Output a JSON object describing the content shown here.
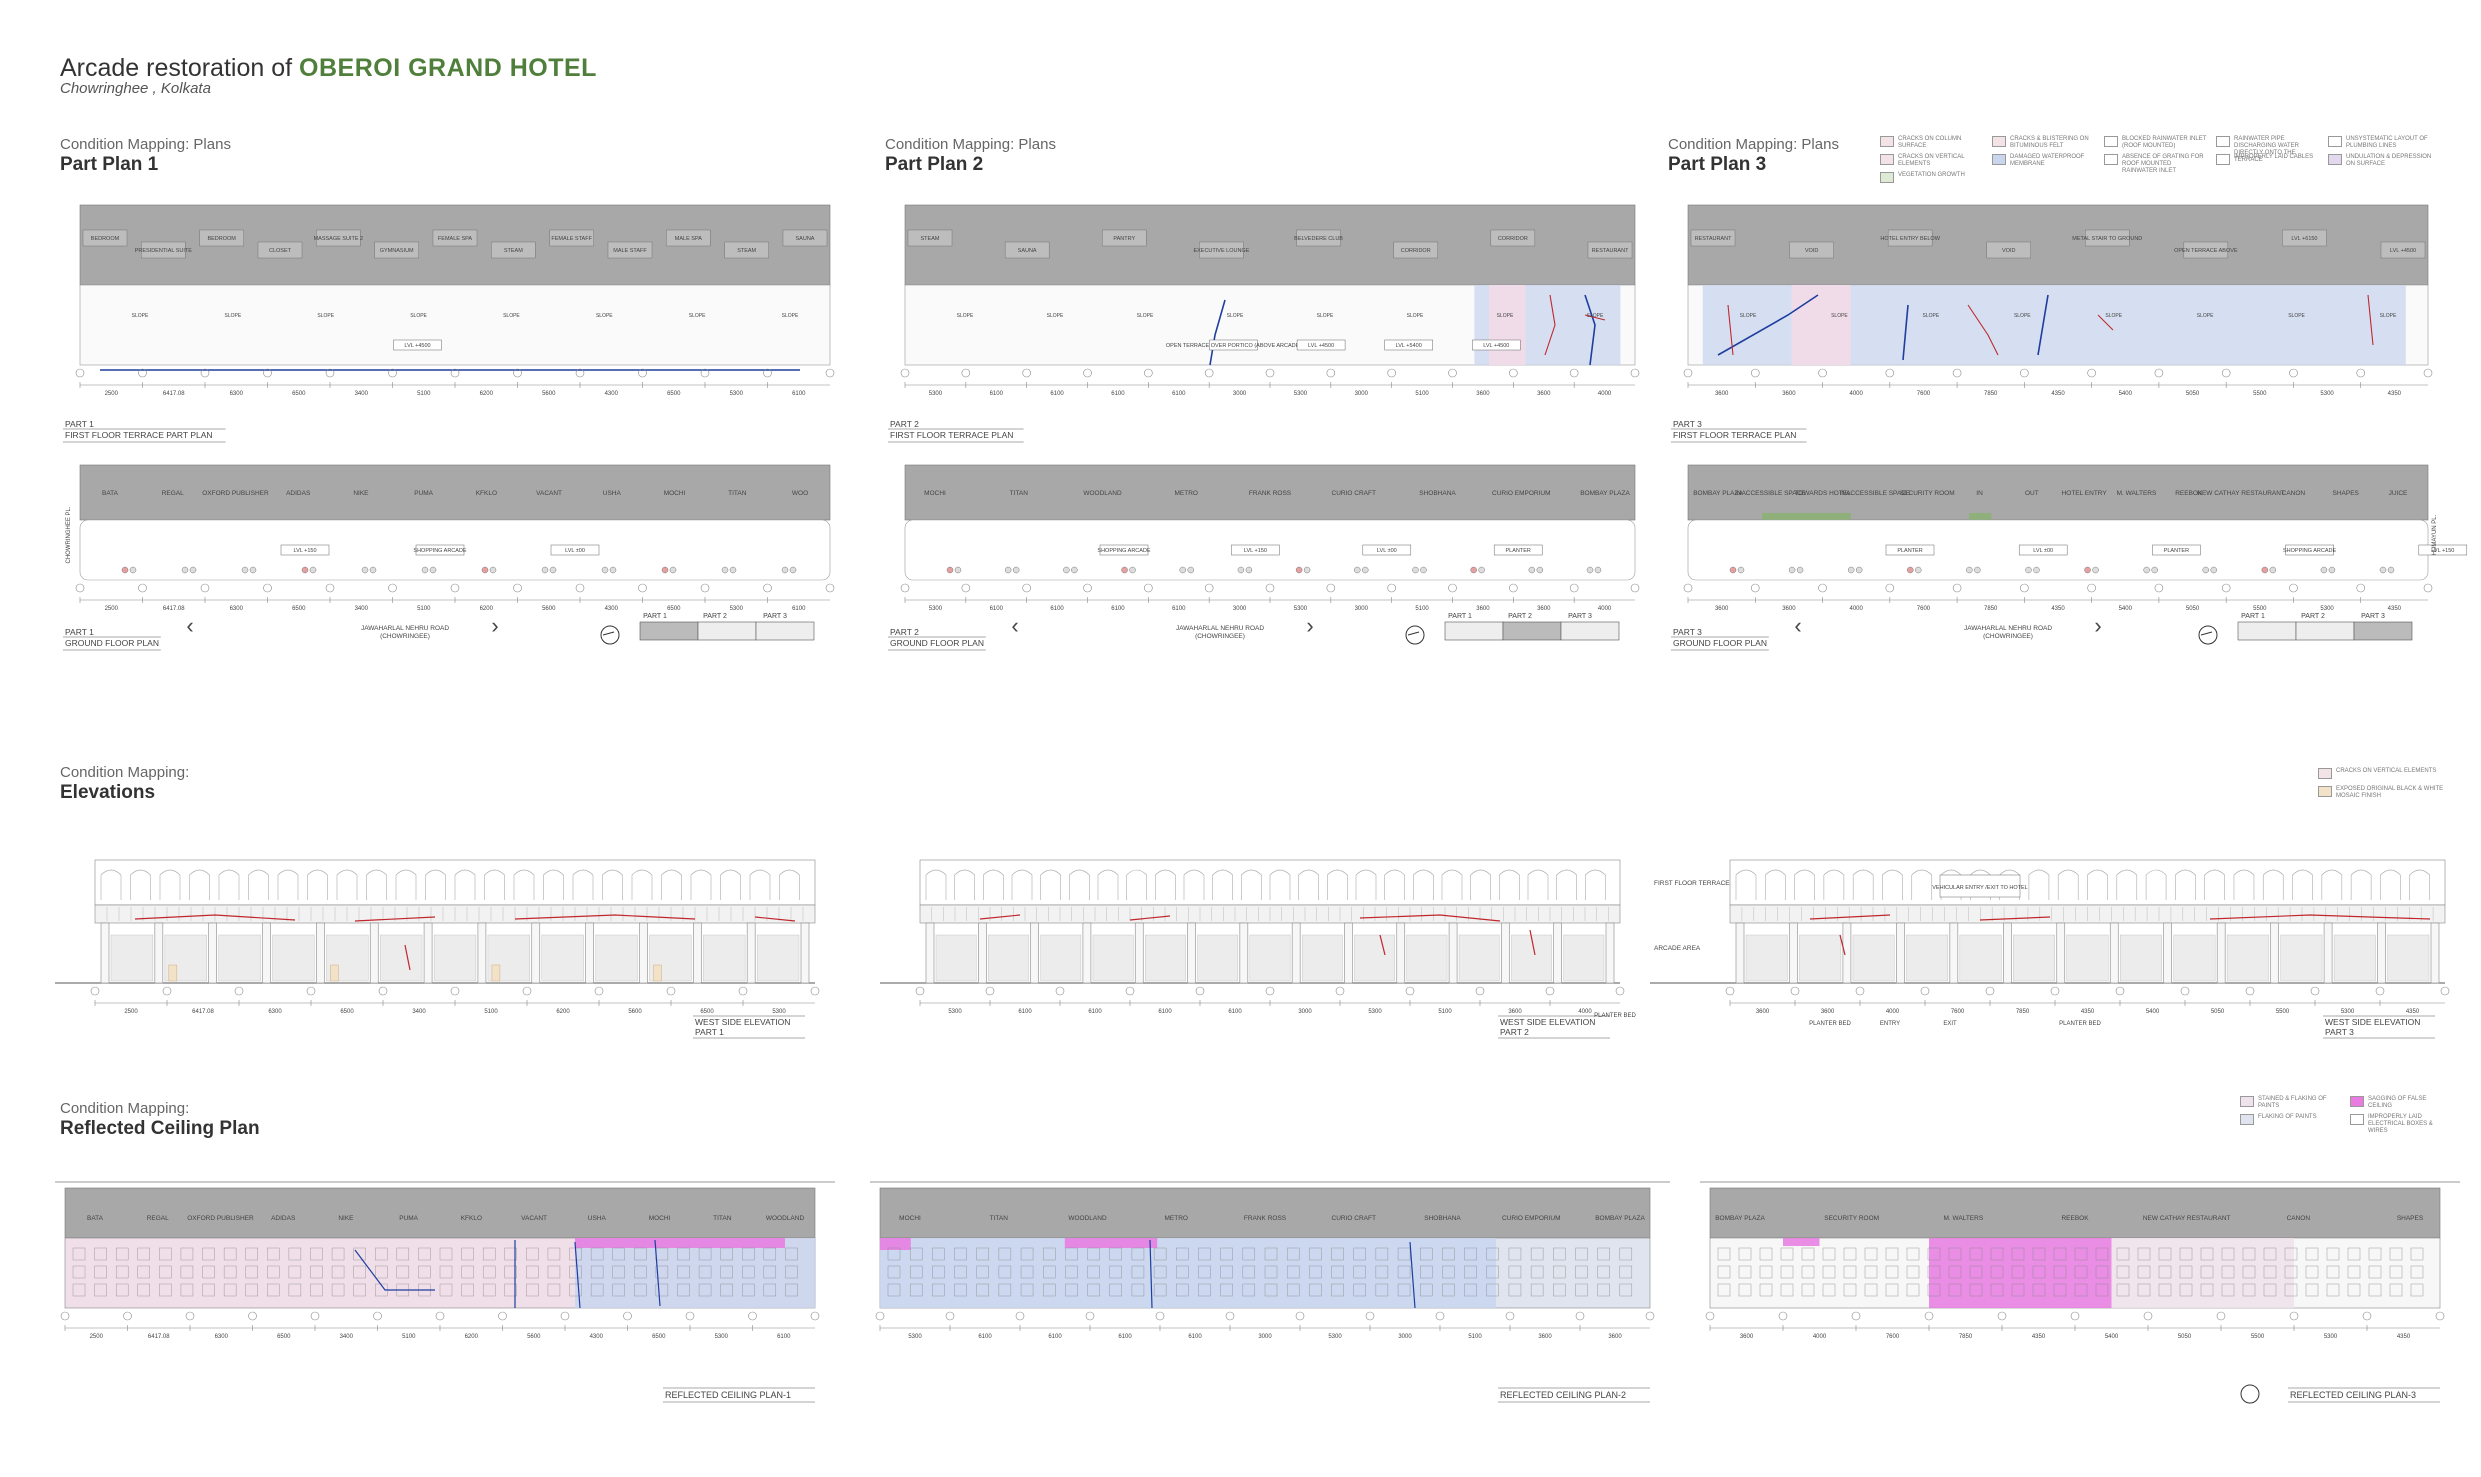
{
  "header": {
    "title_prefix": "Arcade restoration of ",
    "title_highlight": "OBEROI GRAND HOTEL",
    "subtitle": "Chowringhee , Kolkata"
  },
  "plans": {
    "section_sub": "Condition Mapping: Plans",
    "parts": [
      {
        "heading": "Part Plan 1",
        "first_floor_label": [
          "PART 1",
          "FIRST FLOOR TERRACE PART PLAN"
        ],
        "ground_label": [
          "PART 1",
          "GROUND FLOOR PLAN"
        ],
        "road": [
          "JAWAHARLAL NEHRU ROAD",
          "(CHOWRINGEE)"
        ],
        "ff_rooms": [
          "BEDROOM",
          "PRESIDENTIAL SUITE",
          "BEDROOM",
          "CLOSET",
          "MASSAGE SUITE 2",
          "GYMNASIUM",
          "FEMALE SPA",
          "STEAM",
          "FEMALE STAFF",
          "MALE STAFF",
          "MALE SPA",
          "STEAM",
          "SAUNA"
        ],
        "ff_levels": [
          "LVL +4500"
        ],
        "shops": [
          "BATA",
          "REGAL",
          "OXFORD PUBLISHER",
          "ADIDAS",
          "NIKE",
          "PUMA",
          "KFKLO",
          "VACANT",
          "USHA",
          "MOCHI",
          "TITAN",
          "WOO"
        ],
        "gf_levels": [
          "LVL +150",
          "SHOPPING ARCADE",
          "LVL ±00"
        ],
        "side_label": "CHOWRINGHEE PL.",
        "dims_ff": [
          "2500",
          "6417.08",
          "6300",
          "6500",
          "3400",
          "5100",
          "6200",
          "5600",
          "4300",
          "6500",
          "5300",
          "6100"
        ],
        "dims_gf": [
          "2500",
          "6417.08",
          "6300",
          "6500",
          "3400",
          "5100",
          "6200",
          "5600",
          "4300",
          "6500",
          "5300",
          "6100"
        ]
      },
      {
        "heading": "Part Plan 2",
        "first_floor_label": [
          "PART 2",
          "FIRST FLOOR TERRACE PLAN"
        ],
        "ground_label": [
          "PART 2",
          "GROUND FLOOR PLAN"
        ],
        "road": [
          "JAWAHARLAL NEHRU ROAD",
          "(CHOWRINGEE)"
        ],
        "ff_rooms": [
          "STEAM",
          "SAUNA",
          "PANTRY",
          "EXECUTIVE LOUNGE",
          "BELVEDERE CLUB",
          "CORRIDOR",
          "CORRIDOR",
          "RESTAURANT"
        ],
        "ff_levels": [
          "OPEN TERRACE OVER PORTICO (ABOVE ARCADE)",
          "LVL +4500",
          "LVL +5400",
          "LVL +4500"
        ],
        "shops": [
          "MOCHI",
          "TITAN",
          "WOODLAND",
          "METRO",
          "FRANK ROSS",
          "CURIO CRAFT",
          "SHOBHANA",
          "CURIO EMPORIUM",
          "BOMBAY PLAZA"
        ],
        "gf_levels": [
          "SHOPPING ARCADE",
          "LVL +150",
          "LVL ±00",
          "PLANTER"
        ],
        "dims_ff": [
          "5300",
          "6100",
          "6100",
          "6100",
          "6100",
          "3000",
          "5300",
          "3000",
          "5100",
          "3600",
          "3600",
          "4000"
        ],
        "dims_gf": [
          "5300",
          "6100",
          "6100",
          "6100",
          "6100",
          "3000",
          "5300",
          "3000",
          "5100",
          "3600",
          "3600",
          "4000"
        ]
      },
      {
        "heading": "Part Plan 3",
        "first_floor_label": [
          "PART 3",
          "FIRST FLOOR TERRACE PLAN"
        ],
        "ground_label": [
          "PART 3",
          "GROUND FLOOR PLAN"
        ],
        "road": [
          "JAWAHARLAL NEHRU ROAD",
          "(CHOWRINGEE)"
        ],
        "ff_rooms": [
          "RESTAURANT",
          "VOID",
          "HOTEL ENTRY BELOW",
          "VOID",
          "METAL STAIR TO GROUND",
          "OPEN TERRACE ABOVE",
          "LVL +6150",
          "LVL +4500"
        ],
        "ff_levels": [],
        "shops": [
          "BOMBAY PLAZA",
          "INACCESSIBLE SPACE",
          "TOWARDS HOTEL",
          "INACCESSIBLE SPACE",
          "SECURITY ROOM",
          "IN",
          "OUT",
          "HOTEL ENTRY",
          "M. WALTERS",
          "REEBOK",
          "NEW CATHAY RESTAURANT",
          "CANON",
          "SHAPES",
          "JUICE"
        ],
        "gf_levels": [
          "PLANTER",
          "LVL ±00",
          "PLANTER",
          "SHOPPING ARCADE",
          "LVL +150"
        ],
        "side_label": "HUMAYUN PL.",
        "dims_ff": [
          "3600",
          "3600",
          "4000",
          "7600",
          "7850",
          "4350",
          "5400",
          "5050",
          "5500",
          "5300",
          "4350"
        ],
        "dims_gf": [
          "3600",
          "3600",
          "4000",
          "7600",
          "7850",
          "4350",
          "5400",
          "5050",
          "5500",
          "5300",
          "4350"
        ]
      }
    ],
    "key_parts": [
      "PART 1",
      "PART 2",
      "PART 3"
    ],
    "legend": [
      "CRACKS ON COLUMN SURFACE",
      "CRACKS & BLISTERING ON BITUMINOUS FELT",
      "BLOCKED RAINWATER INLET (ROOF MOUNTED)",
      "RAINWATER PIPE DISCHARGING WATER DIRECTLY ONTO THE TERRACE",
      "UNSYSTEMATIC LAYOUT OF PLUMBING LINES",
      "CRACKS ON VERTICAL ELEMENTS",
      "DAMAGED WATERPROOF MEMBRANE",
      "ABSENCE OF GRATING FOR ROOF MOUNTED RAINWATER INLET",
      "IMPROPERLY LAID CABLES",
      "UNDULATION & DEPRESSION ON SURFACE",
      "VEGETATION GROWTH"
    ]
  },
  "elevations": {
    "section_sub": "Condition Mapping:",
    "heading": "Elevations",
    "legend": [
      "CRACKS ON VERTICAL ELEMENTS",
      "EXPOSED ORIGINAL BLACK & WHITE MOSAIC FINISH"
    ],
    "labels": [
      [
        "WEST SIDE ELEVATION",
        "PART 1"
      ],
      [
        "WEST SIDE ELEVATION",
        "PART 2"
      ],
      [
        "WEST SIDE ELEVATION",
        "PART 3"
      ]
    ],
    "part3_tags": [
      "FIRST FLOOR TERRACE",
      "VEHICULAR ENTRY /EXIT TO HOTEL",
      "ARCADE AREA",
      "PLANTER BED",
      "ENTRY",
      "EXIT",
      "PLANTER BED"
    ],
    "part2_tags": [
      "PLANTER BED"
    ],
    "dims1": [
      "2500",
      "6417.08",
      "6300",
      "6500",
      "3400",
      "5100",
      "6200",
      "5600",
      "6500",
      "5300"
    ],
    "dims2": [
      "5300",
      "6100",
      "6100",
      "6100",
      "6100",
      "3000",
      "5300",
      "5100",
      "3600",
      "4000"
    ],
    "dims3": [
      "3600",
      "3600",
      "4000",
      "7600",
      "7850",
      "4350",
      "5400",
      "5050",
      "5500",
      "5300",
      "4350"
    ]
  },
  "rcp": {
    "section_sub": "Condition Mapping:",
    "heading": "Reflected Ceiling Plan",
    "legend": [
      "STAINED & FLAKING OF PAINTS",
      "SAGGING OF FALSE CEILING",
      "FLAKING OF PAINTS",
      "IMPROPERLY LAID ELECTRICAL BOXES & WIRES"
    ],
    "labels": [
      "REFLECTED CEILING PLAN-1",
      "REFLECTED CEILING PLAN-2",
      "REFLECTED CEILING PLAN-3"
    ],
    "shops1": [
      "BATA",
      "REGAL",
      "OXFORD PUBLISHER",
      "ADIDAS",
      "NIKE",
      "PUMA",
      "KFKLO",
      "VACANT",
      "USHA",
      "MOCHI",
      "TITAN",
      "WOODLAND"
    ],
    "shops2": [
      "MOCHI",
      "TITAN",
      "WOODLAND",
      "METRO",
      "FRANK ROSS",
      "CURIO CRAFT",
      "SHOBHANA",
      "CURIO EMPORIUM",
      "BOMBAY PLAZA"
    ],
    "shops3": [
      "BOMBAY PLAZA",
      "SECURITY ROOM",
      "M. WALTERS",
      "REEBOK",
      "NEW CATHAY RESTAURANT",
      "CANON",
      "SHAPES"
    ],
    "dims1": [
      "2500",
      "6417.08",
      "6300",
      "6500",
      "3400",
      "5100",
      "6200",
      "5600",
      "4300",
      "6500",
      "5300",
      "6100"
    ],
    "dims2": [
      "5300",
      "6100",
      "6100",
      "6100",
      "6100",
      "3000",
      "5300",
      "3000",
      "5100",
      "3600",
      "3600"
    ],
    "dims3": [
      "3600",
      "4000",
      "7600",
      "7850",
      "4350",
      "5400",
      "5050",
      "5500",
      "5300",
      "4350"
    ]
  },
  "colors": {
    "wall_grey": "#a8a8a8",
    "accent_green": "#4f7f3b",
    "damage_blue": "#c9d6ee",
    "damage_pink": "#f0dce8",
    "sag_magenta": "#e87ae0",
    "crack_red": "#c0272d",
    "cable_blue": "#1e3ea0"
  }
}
